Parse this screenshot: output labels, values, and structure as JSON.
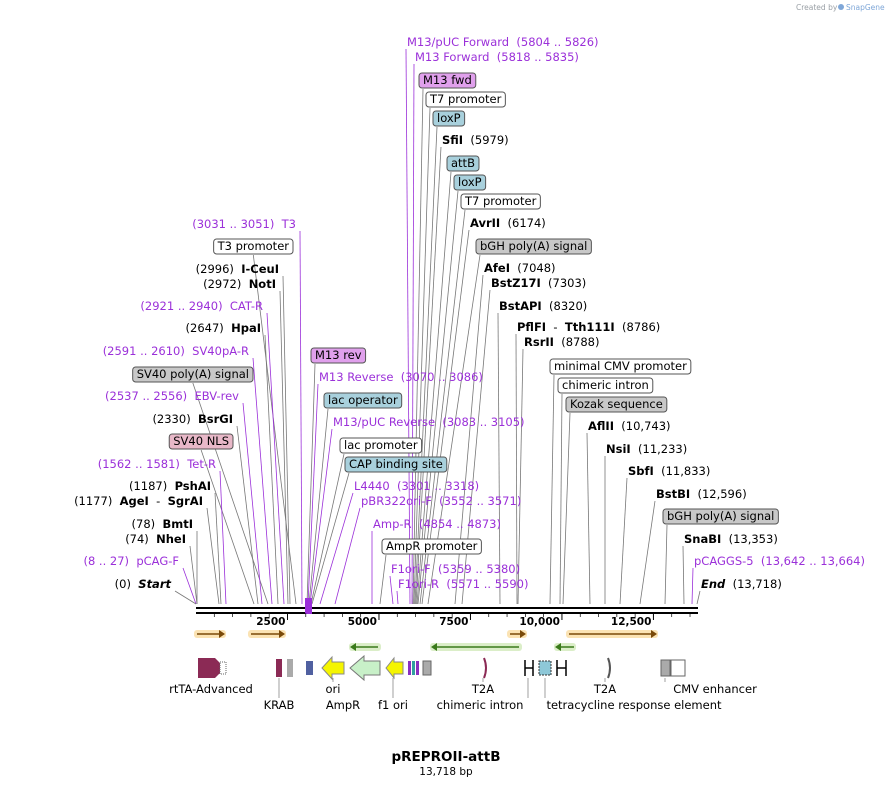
{
  "credit": {
    "prefix": "Created by",
    "brand": "SnapGene"
  },
  "plasmid": {
    "name": "pREPROII-attB",
    "length_label": "13,718 bp",
    "length_bp": 13718
  },
  "colors": {
    "primer": "#9b30d9",
    "site": "#000000",
    "box_grey": "#c8c8c8",
    "box_blue": "#a8d0dc",
    "box_pink": "#e8b8c8",
    "box_violet": "#e0a0ec",
    "box_white": "#ffffff",
    "arrow_orange": "#f0a030",
    "arrow_green": "#80c040"
  },
  "ruler": {
    "ticks": [
      "2500",
      "5000",
      "7500",
      "10,000",
      "12,500"
    ]
  },
  "annotations": [
    {
      "kind": "primer",
      "name": "M13/pUC Forward",
      "range": "(5804 .. 5826)"
    },
    {
      "kind": "primer",
      "name": "M13 Forward",
      "range": "(5818 .. 5835)"
    },
    {
      "kind": "box",
      "name": "M13 fwd",
      "style": "box_violet"
    },
    {
      "kind": "box",
      "name": "T7 promoter",
      "style": "box_white"
    },
    {
      "kind": "box",
      "name": "loxP",
      "style": "box_blue"
    },
    {
      "kind": "site",
      "name": "SfiI",
      "pos": "(5979)"
    },
    {
      "kind": "box",
      "name": "attB",
      "style": "box_blue"
    },
    {
      "kind": "box",
      "name": "loxP",
      "style": "box_blue"
    },
    {
      "kind": "box",
      "name": "T7 promoter",
      "style": "box_white"
    },
    {
      "kind": "site",
      "name": "AvrII",
      "pos": "(6174)"
    },
    {
      "kind": "box",
      "name": "bGH poly(A) signal",
      "style": "box_grey"
    },
    {
      "kind": "site",
      "name": "AfeI",
      "pos": "(7048)"
    },
    {
      "kind": "site",
      "name": "BstZ17I",
      "pos": "(7303)"
    },
    {
      "kind": "site",
      "name": "BstAPI",
      "pos": "(8320)"
    },
    {
      "kind": "site2",
      "name": "PflFI",
      "sep": "-",
      "name2": "Tth111I",
      "pos": "(8786)"
    },
    {
      "kind": "site",
      "name": "RsrII",
      "pos": "(8788)"
    },
    {
      "kind": "box",
      "name": "minimal CMV promoter",
      "style": "box_white"
    },
    {
      "kind": "box",
      "name": "chimeric intron",
      "style": "box_white"
    },
    {
      "kind": "box",
      "name": "Kozak sequence",
      "style": "box_grey"
    },
    {
      "kind": "site",
      "name": "AflII",
      "pos": "(10,743)"
    },
    {
      "kind": "site",
      "name": "NsiI",
      "pos": "(11,233)"
    },
    {
      "kind": "site",
      "name": "SbfI",
      "pos": "(11,833)"
    },
    {
      "kind": "site",
      "name": "BstBI",
      "pos": "(12,596)"
    },
    {
      "kind": "box",
      "name": "bGH poly(A) signal",
      "style": "box_grey"
    },
    {
      "kind": "site",
      "name": "SnaBI",
      "pos": "(13,353)"
    },
    {
      "kind": "primer",
      "name": "pCAGGS-5",
      "range": "(13,642 .. 13,664)"
    },
    {
      "kind": "end",
      "name": "End",
      "pos": "(13,718)"
    },
    {
      "kind": "primer_left",
      "name": "T3",
      "range": "(3031 .. 3051)"
    },
    {
      "kind": "box",
      "name": "T3 promoter",
      "style": "box_white"
    },
    {
      "kind": "site_left",
      "name": "I-CeuI",
      "pos": "(2996)"
    },
    {
      "kind": "site_left",
      "name": "NotI",
      "pos": "(2972)"
    },
    {
      "kind": "primer_left",
      "name": "CAT-R",
      "range": "(2921 .. 2940)"
    },
    {
      "kind": "site_left",
      "name": "HpaI",
      "pos": "(2647)"
    },
    {
      "kind": "primer_left",
      "name": "SV40pA-R",
      "range": "(2591 .. 2610)"
    },
    {
      "kind": "box",
      "name": "SV40 poly(A) signal",
      "style": "box_grey"
    },
    {
      "kind": "primer_left",
      "name": "EBV-rev",
      "range": "(2537 .. 2556)"
    },
    {
      "kind": "site_left",
      "name": "BsrGI",
      "pos": "(2330)"
    },
    {
      "kind": "box",
      "name": "SV40 NLS",
      "style": "box_pink"
    },
    {
      "kind": "primer_left",
      "name": "Tet-R",
      "range": "(1562 .. 1581)"
    },
    {
      "kind": "site_left",
      "name": "PshAI",
      "pos": "(1187)"
    },
    {
      "kind": "site2_left",
      "name": "AgeI",
      "sep": "-",
      "name2": "SgrAI",
      "pos": "(1177)"
    },
    {
      "kind": "site_left",
      "name": "BmtI",
      "pos": "(78)"
    },
    {
      "kind": "site_left",
      "name": "NheI",
      "pos": "(74)"
    },
    {
      "kind": "primer_left",
      "name": "pCAG-F",
      "range": "(8 .. 27)"
    },
    {
      "kind": "start",
      "name": "Start",
      "pos": "(0)"
    },
    {
      "kind": "box",
      "name": "M13 rev",
      "style": "box_violet"
    },
    {
      "kind": "primer",
      "name": "M13 Reverse",
      "range": "(3070 .. 3086)"
    },
    {
      "kind": "box",
      "name": "lac operator",
      "style": "box_blue"
    },
    {
      "kind": "primer",
      "name": "M13/pUC Reverse",
      "range": "(3083 .. 3105)"
    },
    {
      "kind": "box",
      "name": "lac promoter",
      "style": "box_white"
    },
    {
      "kind": "box",
      "name": "CAP binding site",
      "style": "box_blue"
    },
    {
      "kind": "primer",
      "name": "L4440",
      "range": "(3301 .. 3318)"
    },
    {
      "kind": "primer",
      "name": "pBR322ori-F",
      "range": "(3552 .. 3571)"
    },
    {
      "kind": "primer",
      "name": "Amp-R",
      "range": "(4854 .. 4873)"
    },
    {
      "kind": "box",
      "name": "AmpR promoter",
      "style": "box_white"
    },
    {
      "kind": "primer",
      "name": "F1ori-F",
      "range": "(5359 .. 5380)"
    },
    {
      "kind": "primer",
      "name": "F1ori-R",
      "range": "(5571 .. 5590)"
    }
  ],
  "feature_labels": [
    "rtTA-Advanced",
    "KRAB",
    "ori",
    "AmpR",
    "f1 ori",
    "T2A",
    "chimeric intron",
    "T2A",
    "tetracycline response element",
    "CMV enhancer"
  ]
}
